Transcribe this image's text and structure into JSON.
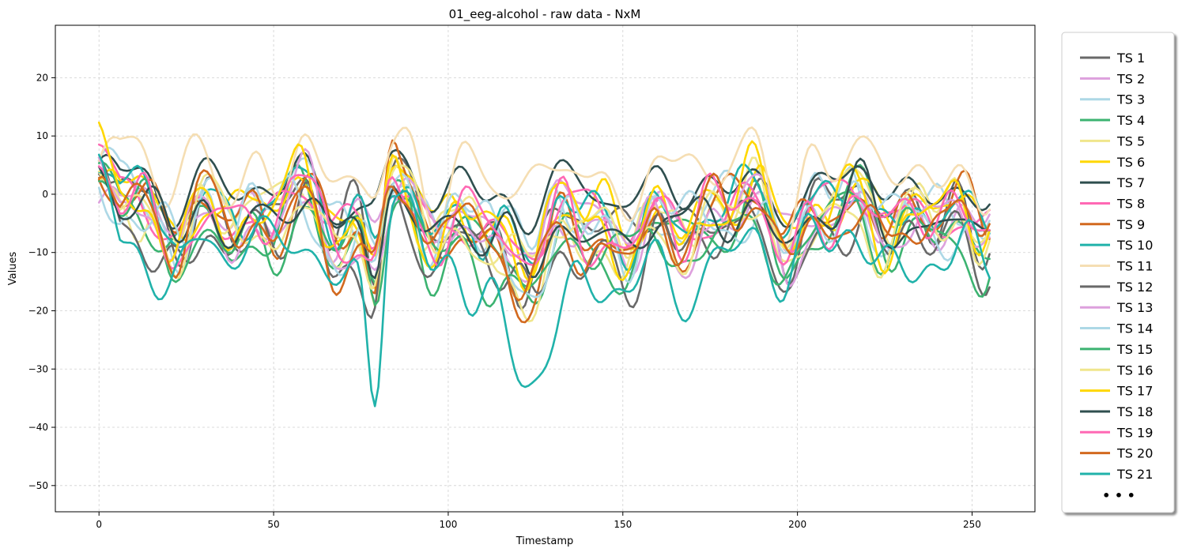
{
  "chart_data": {
    "type": "line",
    "title": "01_eeg-alcohol - raw data - NxM",
    "xlabel": "Timestamp",
    "ylabel": "Values",
    "xlim": [
      -12.5,
      268
    ],
    "ylim": [
      -54.5,
      29
    ],
    "xticks": [
      0,
      50,
      100,
      150,
      200,
      250
    ],
    "yticks": [
      20,
      10,
      0,
      -10,
      -20,
      -30,
      -40,
      -50
    ],
    "xtick_labels": [
      "0",
      "50",
      "100",
      "150",
      "200",
      "250"
    ],
    "ytick_labels": [
      "20",
      "10",
      "0",
      "−10",
      "−20",
      "−30",
      "−40",
      "−50"
    ],
    "grid": true,
    "legend_position": "outside-right",
    "legend_more": "• • •",
    "series": [
      {
        "name": "TS 1",
        "color": "#696969",
        "seed": 1,
        "offset": -3,
        "amp": 6,
        "dip": 0.9
      },
      {
        "name": "TS 2",
        "color": "#dda0dd",
        "seed": 2,
        "offset": -4,
        "amp": 5,
        "dip": 0.4
      },
      {
        "name": "TS 3",
        "color": "#add8e6",
        "seed": 3,
        "offset": -2,
        "amp": 6,
        "dip": 0.7
      },
      {
        "name": "TS 4",
        "color": "#3cb371",
        "seed": 4,
        "offset": -6,
        "amp": 6,
        "dip": 1.0
      },
      {
        "name": "TS 5",
        "color": "#f0e68c",
        "seed": 5,
        "offset": -3,
        "amp": 6,
        "dip": 1.6
      },
      {
        "name": "TS 6",
        "color": "#ffd700",
        "seed": 6,
        "offset": -2,
        "amp": 5,
        "dip": 0.8
      },
      {
        "name": "TS 7",
        "color": "#2f4f4f",
        "seed": 7,
        "offset": 1,
        "amp": 2.5,
        "dip": 0.2
      },
      {
        "name": "TS 8",
        "color": "#ff69b4",
        "seed": 8,
        "offset": -3,
        "amp": 5,
        "dip": 0.6
      },
      {
        "name": "TS 9",
        "color": "#d2691e",
        "seed": 9,
        "offset": -3,
        "amp": 6,
        "dip": 1.5
      },
      {
        "name": "TS 10",
        "color": "#20b2aa",
        "seed": 10,
        "offset": -2,
        "amp": 5,
        "dip": 0.8
      },
      {
        "name": "TS 11",
        "color": "#f5deb3",
        "seed": 11,
        "offset": 4,
        "amp": 6,
        "dip": 0.3
      },
      {
        "name": "TS 12",
        "color": "#696969",
        "seed": 12,
        "offset": -8,
        "amp": 6,
        "dip": 0.9
      },
      {
        "name": "TS 13",
        "color": "#dda0dd",
        "seed": 13,
        "offset": -5,
        "amp": 6,
        "dip": 0.5
      },
      {
        "name": "TS 14",
        "color": "#add8e6",
        "seed": 14,
        "offset": -4,
        "amp": 7,
        "dip": 0.8
      },
      {
        "name": "TS 15",
        "color": "#3cb371",
        "seed": 15,
        "offset": -7,
        "amp": 6,
        "dip": 1.0
      },
      {
        "name": "TS 16",
        "color": "#f0e68c",
        "seed": 16,
        "offset": -5,
        "amp": 6,
        "dip": 0.6
      },
      {
        "name": "TS 17",
        "color": "#ffd700",
        "seed": 17,
        "offset": -3,
        "amp": 6,
        "dip": 0.7
      },
      {
        "name": "TS 18",
        "color": "#2f4f4f",
        "seed": 18,
        "offset": -4,
        "amp": 5,
        "dip": 0.8
      },
      {
        "name": "TS 19",
        "color": "#ff69b4",
        "seed": 19,
        "offset": -4,
        "amp": 6,
        "dip": 0.6
      },
      {
        "name": "TS 20",
        "color": "#d2691e",
        "seed": 20,
        "offset": -5,
        "amp": 6,
        "dip": 0.9
      },
      {
        "name": "TS 21",
        "color": "#20b2aa",
        "seed": 21,
        "offset": -10,
        "amp": 7,
        "dip": 2.2
      }
    ]
  }
}
